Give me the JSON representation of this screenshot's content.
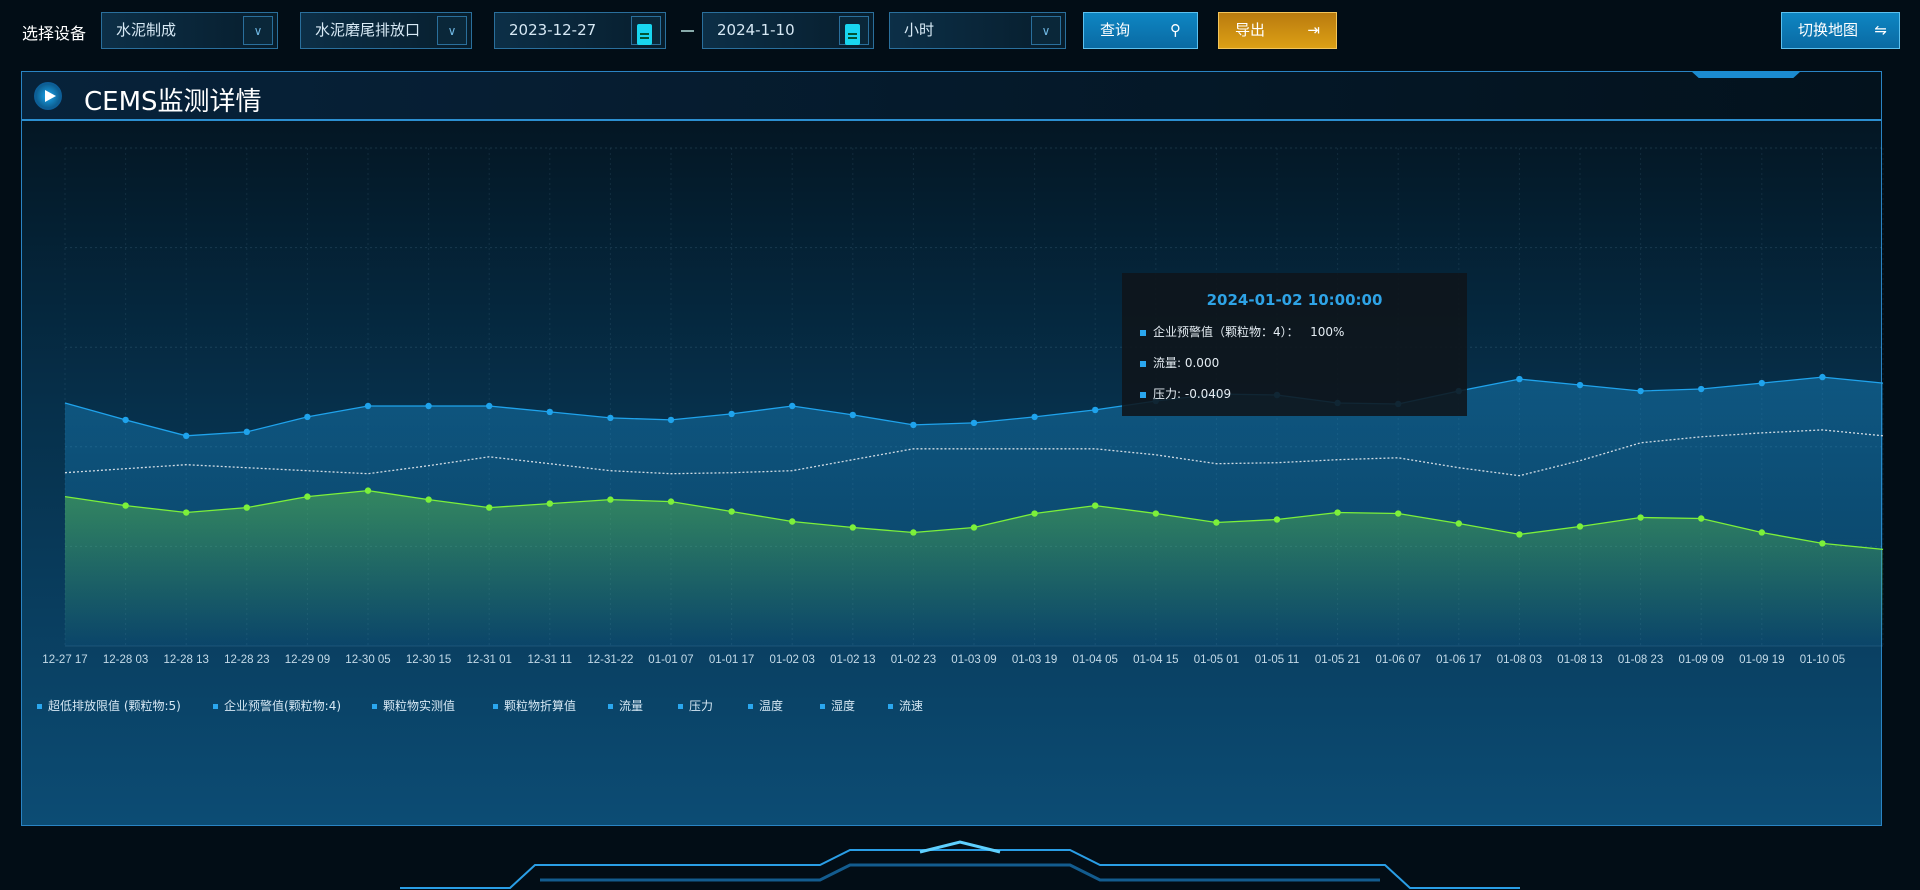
{
  "toolbar": {
    "device_label": "选择设备",
    "select_company": "水泥制成",
    "select_outlet": "水泥磨尾排放口",
    "date_start": "2023-12-27",
    "date_end": "2024-1-10",
    "select_interval": "小时",
    "query_label": "查询",
    "export_label": "导出",
    "switch_map_label": "切换地图"
  },
  "panel": {
    "title": "CEMS监测详情"
  },
  "tooltip": {
    "title": "2024-01-02 10:00:00",
    "rows": [
      "企业预警值（颗粒物：4）：   100%",
      "流量: 0.000",
      "压力: -0.0409"
    ]
  },
  "colors": {
    "blue_series": "#1fa3ec",
    "green_series": "#7cf03a",
    "dotted_series": "#d0dbe4",
    "accent": "#0e86c3",
    "export": "#dca015"
  },
  "chart_data": {
    "type": "line",
    "categories": [
      "12-27 17",
      "12-28 03",
      "12-28 13",
      "12-28 23",
      "12-29 09",
      "12-30 05",
      "12-30 15",
      "12-31 01",
      "12-31 11",
      "12-31-22",
      "01-01 07",
      "01-01 17",
      "01-02 03",
      "01-02 13",
      "01-02 23",
      "01-03 09",
      "01-03 19",
      "01-04 05",
      "01-04 15",
      "01-05 01",
      "01-05 11",
      "01-05 21",
      "01-06 07",
      "01-06 17",
      "01-08 03",
      "01-08 13",
      "01-08 23",
      "01-09 09",
      "01-09 19",
      "01-10 05"
    ],
    "ylim": [
      0,
      5
    ],
    "grid": true,
    "y_axis_labels_shown": false,
    "legend": {
      "placement": "bottom-left",
      "items": [
        "超低排放限值 (颗粒物:5)",
        "企业预警值(颗粒物:4)",
        "颗粒物实测值",
        "颗粒物折算值",
        "流量",
        "压力",
        "温度",
        "湿度",
        "流速"
      ]
    },
    "series": [
      {
        "style": "area-blue",
        "values": [
          2.44,
          2.27,
          2.11,
          2.15,
          2.3,
          2.41,
          2.41,
          2.41,
          2.35,
          2.29,
          2.27,
          2.33,
          2.41,
          2.32,
          2.22,
          2.24,
          2.3,
          2.37,
          2.46,
          2.53,
          2.52,
          2.44,
          2.43,
          2.56,
          2.68,
          2.62,
          2.56,
          2.58,
          2.64,
          2.7
        ]
      },
      {
        "style": "dotted-white",
        "values": [
          1.74,
          1.78,
          1.82,
          1.79,
          1.76,
          1.73,
          1.81,
          1.9,
          1.83,
          1.76,
          1.73,
          1.74,
          1.76,
          1.87,
          1.98,
          1.98,
          1.98,
          1.98,
          1.92,
          1.83,
          1.84,
          1.87,
          1.89,
          1.79,
          1.71,
          1.86,
          2.04,
          2.1,
          2.14,
          2.17
        ]
      },
      {
        "style": "area-green",
        "values": [
          1.5,
          1.41,
          1.34,
          1.39,
          1.5,
          1.56,
          1.47,
          1.39,
          1.43,
          1.47,
          1.45,
          1.35,
          1.25,
          1.19,
          1.14,
          1.19,
          1.33,
          1.41,
          1.33,
          1.24,
          1.27,
          1.34,
          1.33,
          1.23,
          1.12,
          1.2,
          1.29,
          1.28,
          1.14,
          1.03
        ]
      }
    ]
  }
}
